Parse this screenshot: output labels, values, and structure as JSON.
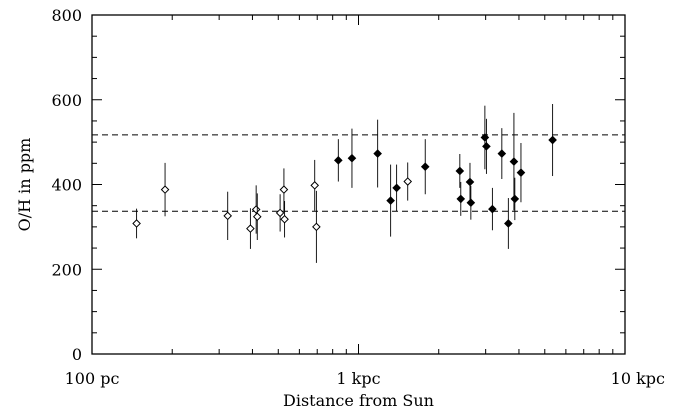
{
  "chart_data": {
    "type": "scatter",
    "xlabel": "Distance from Sun",
    "ylabel": "O/H in ppm",
    "xscale": "log",
    "xlim": [
      100,
      10000
    ],
    "ylim": [
      0,
      800
    ],
    "x_ticks": [
      {
        "value": 100,
        "label": "100 pc"
      },
      {
        "value": 1000,
        "label": "1 kpc"
      },
      {
        "value": 10000,
        "label": "10 kpc"
      }
    ],
    "y_ticks": [
      0,
      200,
      400,
      600,
      800
    ],
    "grid": false,
    "reference_lines": [
      {
        "y": 517,
        "style": "dashed"
      },
      {
        "y": 337,
        "style": "dashed"
      }
    ],
    "series": [
      {
        "marker": "open-diamond",
        "points": [
          {
            "x": 147,
            "y": 308,
            "err": 35
          },
          {
            "x": 188,
            "y": 388,
            "err": 63
          },
          {
            "x": 323,
            "y": 326,
            "err": 57
          },
          {
            "x": 393,
            "y": 296,
            "err": 48
          },
          {
            "x": 413,
            "y": 341,
            "err": 57
          },
          {
            "x": 417,
            "y": 324,
            "err": 55
          },
          {
            "x": 508,
            "y": 333,
            "err": 44
          },
          {
            "x": 525,
            "y": 388,
            "err": 50
          },
          {
            "x": 528,
            "y": 318,
            "err": 43
          },
          {
            "x": 685,
            "y": 398,
            "err": 60
          },
          {
            "x": 695,
            "y": 300,
            "err": 85
          },
          {
            "x": 1530,
            "y": 407,
            "err": 45
          }
        ]
      },
      {
        "marker": "filled-diamond",
        "points": [
          {
            "x": 840,
            "y": 457,
            "err": 50
          },
          {
            "x": 945,
            "y": 462,
            "err": 70
          },
          {
            "x": 1180,
            "y": 473,
            "err": 80
          },
          {
            "x": 1320,
            "y": 362,
            "err": 85
          },
          {
            "x": 1390,
            "y": 392,
            "err": 55
          },
          {
            "x": 1780,
            "y": 442,
            "err": 65
          },
          {
            "x": 2400,
            "y": 432,
            "err": 40
          },
          {
            "x": 2420,
            "y": 366,
            "err": 40
          },
          {
            "x": 2620,
            "y": 406,
            "err": 45
          },
          {
            "x": 2640,
            "y": 357,
            "err": 40
          },
          {
            "x": 2980,
            "y": 511,
            "err": 75
          },
          {
            "x": 3020,
            "y": 490,
            "err": 65
          },
          {
            "x": 3180,
            "y": 342,
            "err": 50
          },
          {
            "x": 3450,
            "y": 473,
            "err": 60
          },
          {
            "x": 3650,
            "y": 308,
            "err": 60
          },
          {
            "x": 3830,
            "y": 454,
            "err": 115
          },
          {
            "x": 3860,
            "y": 366,
            "err": 50
          },
          {
            "x": 4070,
            "y": 428,
            "err": 70
          },
          {
            "x": 5350,
            "y": 505,
            "err": 85
          }
        ]
      }
    ]
  }
}
